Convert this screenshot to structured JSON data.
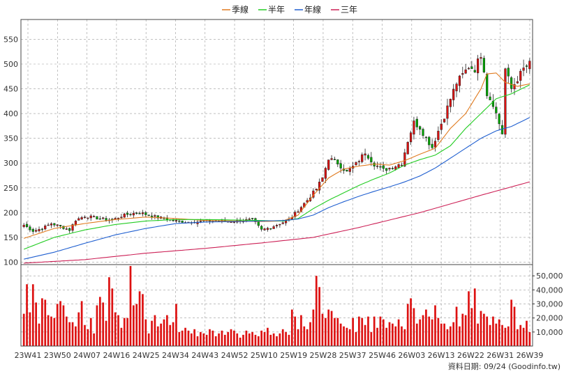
{
  "chart_data": [
    {
      "type": "candlestick",
      "title": "",
      "legend": {
        "position": "top-center",
        "items": [
          {
            "name": "季線",
            "color": "#e07b20"
          },
          {
            "name": "半年",
            "color": "#22cc22"
          },
          {
            "name": "年線",
            "color": "#1f5fd0"
          },
          {
            "name": "三年",
            "color": "#cc1f55"
          }
        ]
      },
      "x_ticks": [
        "23W41",
        "23W50",
        "24W07",
        "24W16",
        "24W25",
        "24W34",
        "24W43",
        "24W52",
        "25W10",
        "25W19",
        "25W28",
        "25W37",
        "25W46",
        "26W03",
        "26W13",
        "26W22",
        "26W31",
        "26W39"
      ],
      "y_ticks": [
        100,
        150,
        200,
        250,
        300,
        350,
        400,
        450,
        500,
        550
      ],
      "ylim": [
        95,
        590
      ],
      "grid": true,
      "candle_colors": {
        "up": "#dd1111",
        "down": "#00aa00"
      },
      "close_keypoints": [
        [
          0,
          175
        ],
        [
          3,
          163
        ],
        [
          6,
          168
        ],
        [
          9,
          178
        ],
        [
          12,
          172
        ],
        [
          15,
          165
        ],
        [
          17,
          185
        ],
        [
          20,
          193
        ],
        [
          23,
          190
        ],
        [
          26,
          187
        ],
        [
          29,
          185
        ],
        [
          32,
          193
        ],
        [
          35,
          198
        ],
        [
          38,
          200
        ],
        [
          42,
          193
        ],
        [
          46,
          188
        ],
        [
          50,
          183
        ],
        [
          54,
          181
        ],
        [
          58,
          182
        ],
        [
          62,
          184
        ],
        [
          66,
          182
        ],
        [
          70,
          183
        ],
        [
          75,
          186
        ],
        [
          78,
          165
        ],
        [
          81,
          170
        ],
        [
          84,
          178
        ],
        [
          87,
          185
        ],
        [
          90,
          205
        ],
        [
          93,
          225
        ],
        [
          96,
          248
        ],
        [
          98,
          270
        ],
        [
          100,
          310
        ],
        [
          103,
          300
        ],
        [
          106,
          282
        ],
        [
          109,
          298
        ],
        [
          112,
          322
        ],
        [
          115,
          298
        ],
        [
          118,
          286
        ],
        [
          121,
          292
        ],
        [
          124,
          300
        ],
        [
          126,
          345
        ],
        [
          128,
          382
        ],
        [
          130,
          372
        ],
        [
          132,
          350
        ],
        [
          134,
          332
        ],
        [
          136,
          365
        ],
        [
          138,
          395
        ],
        [
          140,
          430
        ],
        [
          142,
          462
        ],
        [
          144,
          478
        ],
        [
          146,
          495
        ],
        [
          148,
          490
        ],
        [
          150,
          520
        ],
        [
          151,
          490
        ],
        [
          152,
          440
        ],
        [
          154,
          420
        ],
        [
          156,
          380
        ],
        [
          157,
          360
        ],
        [
          158,
          490
        ],
        [
          160,
          450
        ],
        [
          162,
          470
        ],
        [
          164,
          490
        ],
        [
          166,
          500
        ],
        [
          167,
          532
        ]
      ],
      "ma_quarter": [
        [
          0,
          148
        ],
        [
          10,
          168
        ],
        [
          20,
          178
        ],
        [
          30,
          186
        ],
        [
          40,
          191
        ],
        [
          50,
          188
        ],
        [
          60,
          184
        ],
        [
          70,
          183
        ],
        [
          78,
          182
        ],
        [
          85,
          183
        ],
        [
          90,
          195
        ],
        [
          95,
          235
        ],
        [
          100,
          270
        ],
        [
          105,
          288
        ],
        [
          110,
          294
        ],
        [
          115,
          298
        ],
        [
          120,
          296
        ],
        [
          125,
          305
        ],
        [
          130,
          318
        ],
        [
          135,
          330
        ],
        [
          140,
          370
        ],
        [
          145,
          400
        ],
        [
          150,
          450
        ],
        [
          152,
          480
        ],
        [
          155,
          482
        ],
        [
          158,
          463
        ],
        [
          162,
          455
        ],
        [
          166,
          460
        ]
      ],
      "ma_half": [
        [
          0,
          126
        ],
        [
          10,
          150
        ],
        [
          20,
          165
        ],
        [
          30,
          176
        ],
        [
          40,
          183
        ],
        [
          50,
          186
        ],
        [
          60,
          186
        ],
        [
          70,
          185
        ],
        [
          78,
          184
        ],
        [
          85,
          183
        ],
        [
          90,
          188
        ],
        [
          95,
          208
        ],
        [
          100,
          225
        ],
        [
          105,
          240
        ],
        [
          110,
          255
        ],
        [
          115,
          268
        ],
        [
          120,
          280
        ],
        [
          125,
          296
        ],
        [
          130,
          307
        ],
        [
          135,
          316
        ],
        [
          140,
          335
        ],
        [
          145,
          370
        ],
        [
          150,
          400
        ],
        [
          155,
          430
        ],
        [
          160,
          440
        ],
        [
          166,
          458
        ]
      ],
      "ma_year": [
        [
          0,
          106
        ],
        [
          10,
          120
        ],
        [
          20,
          138
        ],
        [
          30,
          155
        ],
        [
          40,
          168
        ],
        [
          50,
          178
        ],
        [
          60,
          181
        ],
        [
          70,
          182
        ],
        [
          78,
          183
        ],
        [
          85,
          184
        ],
        [
          90,
          187
        ],
        [
          95,
          195
        ],
        [
          100,
          210
        ],
        [
          105,
          222
        ],
        [
          110,
          233
        ],
        [
          115,
          243
        ],
        [
          120,
          252
        ],
        [
          125,
          262
        ],
        [
          130,
          274
        ],
        [
          135,
          290
        ],
        [
          140,
          310
        ],
        [
          145,
          330
        ],
        [
          150,
          350
        ],
        [
          155,
          365
        ],
        [
          160,
          374
        ],
        [
          166,
          392
        ]
      ],
      "ma_3year": [
        [
          0,
          98
        ],
        [
          20,
          105
        ],
        [
          40,
          118
        ],
        [
          60,
          128
        ],
        [
          80,
          140
        ],
        [
          95,
          150
        ],
        [
          110,
          170
        ],
        [
          130,
          200
        ],
        [
          150,
          235
        ],
        [
          166,
          262
        ]
      ]
    },
    {
      "type": "bar",
      "series_name": "volume",
      "y_ticks": [
        "10,000",
        "20,000",
        "30,000",
        "40,000",
        "50,000"
      ],
      "ylim": [
        0,
        58000
      ],
      "grid": true,
      "bar_color": "#dd1111",
      "values": [
        23000,
        44000,
        24000,
        44000,
        31000,
        16000,
        34000,
        33000,
        22000,
        21000,
        20000,
        30000,
        32000,
        29000,
        21000,
        17000,
        17000,
        14000,
        24000,
        32000,
        15000,
        12000,
        20000,
        9000,
        29000,
        35000,
        31000,
        18000,
        49000,
        41000,
        24000,
        22000,
        13000,
        20000,
        20000,
        57000,
        29000,
        30000,
        39000,
        37000,
        19000,
        9000,
        18000,
        22000,
        14000,
        16000,
        19000,
        22000,
        15000,
        17000,
        30000,
        10000,
        11000,
        13000,
        11000,
        9000,
        12000,
        7000,
        10000,
        9000,
        8000,
        12000,
        11000,
        7000,
        9000,
        11000,
        8000,
        10000,
        12000,
        11000,
        9000,
        6000,
        8000,
        11000,
        9000,
        10000,
        8000,
        7000,
        11000,
        10000,
        13000,
        8000,
        9000,
        7000,
        9000,
        12000,
        10000,
        8000,
        26000,
        21000,
        12000,
        22000,
        14000,
        12000,
        17000,
        26000,
        50000,
        42000,
        23000,
        20000,
        26000,
        25000,
        20000,
        20000,
        16000,
        14000,
        13000,
        12000,
        20000,
        10000,
        21000,
        20000,
        15000,
        21000,
        10000,
        21000,
        13000,
        21000,
        19000,
        13000,
        17000,
        16000,
        14000,
        19000,
        14000,
        12000,
        30000,
        34000,
        27000,
        16000,
        19000,
        22000,
        26000,
        21000,
        19000,
        29000,
        20000,
        16000,
        16000,
        12000,
        14000,
        17000,
        28000,
        14000,
        23000,
        22000,
        39000,
        27000,
        41000,
        16000,
        25000,
        23000,
        21000,
        15000,
        21000,
        16000,
        19000,
        15000,
        13000,
        14000,
        33000,
        28000,
        12000,
        15000,
        13000,
        18000,
        10000
      ]
    }
  ],
  "footer": {
    "text": "資料日期: 09/24  (Goodinfo.tw)"
  }
}
